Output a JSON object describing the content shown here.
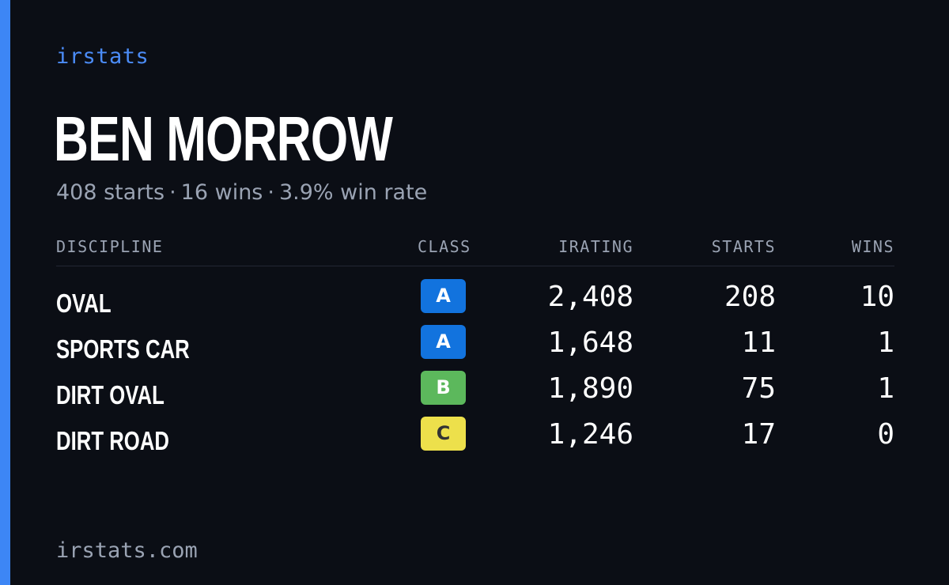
{
  "brand": {
    "label": "irstats",
    "color": "#4b8cf7"
  },
  "accent_color": "#3d86f5",
  "player": {
    "name": "BEN MORROW",
    "starts_text": "408 starts",
    "wins_text": "16 wins",
    "win_rate_text": "3.9% win rate",
    "separator": "·"
  },
  "table": {
    "headers": {
      "discipline": "DISCIPLINE",
      "class": "CLASS",
      "irating": "IRATING",
      "starts": "STARTS",
      "wins": "WINS"
    },
    "rows": [
      {
        "discipline": "OVAL",
        "class": "A",
        "class_bg": "#1273de",
        "class_fg": "#ffffff",
        "irating": "2,408",
        "starts": "208",
        "wins": "10"
      },
      {
        "discipline": "SPORTS CAR",
        "class": "A",
        "class_bg": "#1273de",
        "class_fg": "#ffffff",
        "irating": "1,648",
        "starts": "11",
        "wins": "1"
      },
      {
        "discipline": "DIRT OVAL",
        "class": "B",
        "class_bg": "#5cb85c",
        "class_fg": "#ffffff",
        "irating": "1,890",
        "starts": "75",
        "wins": "1"
      },
      {
        "discipline": "DIRT ROAD",
        "class": "C",
        "class_bg": "#ede04b",
        "class_fg": "#333333",
        "irating": "1,246",
        "starts": "17",
        "wins": "0"
      }
    ]
  },
  "footer": {
    "url": "irstats.com"
  }
}
